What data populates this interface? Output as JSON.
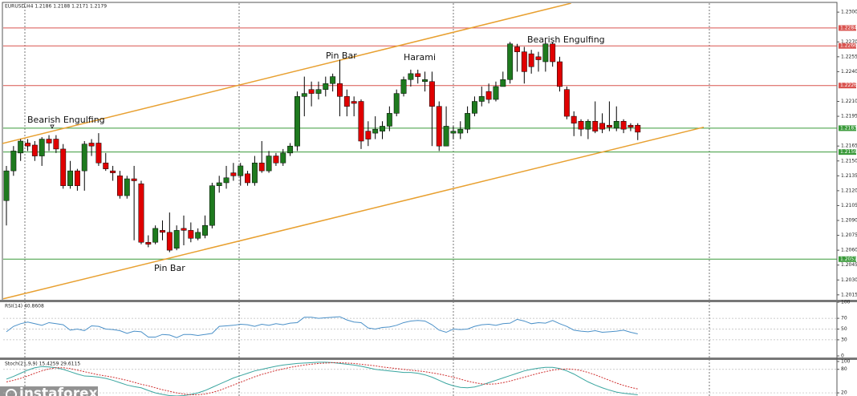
{
  "chart_data": [
    {
      "type": "candlestick",
      "title": "EURUSD,H4  1.2186 1.2188 1.2171 1.2179",
      "ylim": [
        1.201,
        1.2309
      ],
      "yticks": [
        {
          "value": 1.23,
          "label": "1.2300"
        },
        {
          "value": 1.227,
          "label": "1.2270"
        },
        {
          "value": 1.2255,
          "label": "1.2255"
        },
        {
          "value": 1.224,
          "label": "1.2240"
        },
        {
          "value": 1.221,
          "label": "1.2210"
        },
        {
          "value": 1.2195,
          "label": "1.2195"
        },
        {
          "value": 1.2165,
          "label": "1.2165"
        },
        {
          "value": 1.215,
          "label": "1.2150"
        },
        {
          "value": 1.2135,
          "label": "1.2135"
        },
        {
          "value": 1.212,
          "label": "1.2120"
        },
        {
          "value": 1.2105,
          "label": "1.2105"
        },
        {
          "value": 1.209,
          "label": "1.2090"
        },
        {
          "value": 1.2075,
          "label": "1.2075"
        },
        {
          "value": 1.206,
          "label": "1.2060"
        },
        {
          "value": 1.2045,
          "label": "1.2045"
        },
        {
          "value": 1.203,
          "label": "1.2030"
        },
        {
          "value": 1.2015,
          "label": "1.2015"
        }
      ],
      "up_color": "#1e7a1e",
      "down_color": "#e00000",
      "open": [
        1.211,
        1.214,
        1.2158,
        1.2168,
        1.2166,
        1.2155,
        1.2172,
        1.2172,
        1.2162,
        1.2125,
        1.214,
        1.214,
        1.2168,
        1.2168,
        1.2148,
        1.214,
        1.2135,
        1.2115,
        1.2132,
        1.2127,
        1.2068,
        1.2068,
        1.208,
        1.2078,
        1.2062,
        1.2082,
        1.208,
        1.2072,
        1.2075,
        1.2085,
        1.2125,
        1.2128,
        1.2138,
        1.2135,
        1.2137,
        1.2128,
        1.2148,
        1.214,
        1.2155,
        1.2148,
        1.2158,
        1.2165,
        1.2215,
        1.2222,
        1.2218,
        1.2222,
        1.2228,
        1.2228,
        1.2215,
        1.221,
        1.221,
        1.218,
        1.2178,
        1.218,
        1.2185,
        1.2198,
        1.2218,
        1.2232,
        1.2238,
        1.223,
        1.223,
        1.2205,
        1.2165,
        1.2178,
        1.2178,
        1.2182,
        1.2198,
        1.221,
        1.222,
        1.2212,
        1.2225,
        1.2232,
        1.2265,
        1.226,
        1.2258,
        1.2255,
        1.225,
        1.2268,
        1.225,
        1.2222,
        1.2195,
        1.219,
        1.2182,
        1.219,
        1.2188,
        1.2186,
        1.2183,
        1.219,
        1.2186,
        1.2186
      ],
      "high": [
        1.2145,
        1.2165,
        1.2172,
        1.2172,
        1.217,
        1.2174,
        1.2176,
        1.2176,
        1.2167,
        1.215,
        1.2142,
        1.217,
        1.2172,
        1.2178,
        1.2158,
        1.2145,
        1.214,
        1.2135,
        1.2145,
        1.213,
        1.2075,
        1.2085,
        1.209,
        1.2098,
        1.2085,
        1.2095,
        1.2088,
        1.2082,
        1.2095,
        1.2128,
        1.2135,
        1.2145,
        1.2148,
        1.2148,
        1.214,
        1.2155,
        1.217,
        1.216,
        1.2158,
        1.2162,
        1.2168,
        1.222,
        1.2235,
        1.223,
        1.223,
        1.2235,
        1.2238,
        1.2252,
        1.2222,
        1.2215,
        1.2212,
        1.219,
        1.2195,
        1.219,
        1.2205,
        1.2222,
        1.2235,
        1.2242,
        1.2242,
        1.224,
        1.224,
        1.221,
        1.2205,
        1.2185,
        1.219,
        1.2205,
        1.2215,
        1.2225,
        1.2228,
        1.223,
        1.224,
        1.227,
        1.2268,
        1.2265,
        1.2262,
        1.226,
        1.227,
        1.227,
        1.2255,
        1.2225,
        1.22,
        1.2192,
        1.2192,
        1.221,
        1.2198,
        1.221,
        1.2205,
        1.2192,
        1.2188,
        1.2188
      ],
      "low": [
        1.2085,
        1.2135,
        1.215,
        1.216,
        1.215,
        1.2145,
        1.216,
        1.2158,
        1.2122,
        1.2122,
        1.212,
        1.212,
        1.2155,
        1.2145,
        1.214,
        1.213,
        1.2112,
        1.2112,
        1.207,
        1.2066,
        1.2063,
        1.2066,
        1.207,
        1.2058,
        1.206,
        1.2065,
        1.2068,
        1.207,
        1.2072,
        1.2082,
        1.2118,
        1.2122,
        1.213,
        1.2125,
        1.2125,
        1.2125,
        1.2138,
        1.2138,
        1.2145,
        1.2145,
        1.2155,
        1.216,
        1.2195,
        1.2205,
        1.2212,
        1.2215,
        1.222,
        1.2195,
        1.2195,
        1.2195,
        1.2162,
        1.2165,
        1.2172,
        1.2172,
        1.218,
        1.2195,
        1.2215,
        1.2225,
        1.2228,
        1.222,
        1.2165,
        1.216,
        1.2165,
        1.2172,
        1.2172,
        1.2178,
        1.2195,
        1.2205,
        1.2208,
        1.221,
        1.2225,
        1.2228,
        1.224,
        1.2228,
        1.2238,
        1.224,
        1.224,
        1.2245,
        1.222,
        1.2192,
        1.2175,
        1.2175,
        1.2172,
        1.2178,
        1.2178,
        1.218,
        1.218,
        1.2178,
        1.218,
        1.2171
      ],
      "close": [
        1.214,
        1.216,
        1.217,
        1.2165,
        1.2155,
        1.2172,
        1.2168,
        1.2162,
        1.2125,
        1.214,
        1.2125,
        1.2167,
        1.2165,
        1.2148,
        1.2142,
        1.2138,
        1.2115,
        1.2132,
        1.213,
        1.2068,
        1.2066,
        1.2082,
        1.2078,
        1.206,
        1.208,
        1.208,
        1.2072,
        1.2078,
        1.2085,
        1.2125,
        1.2128,
        1.2133,
        1.2135,
        1.2145,
        1.2128,
        1.2148,
        1.214,
        1.2155,
        1.2148,
        1.2158,
        1.2165,
        1.2215,
        1.2218,
        1.2218,
        1.2222,
        1.2228,
        1.2235,
        1.2215,
        1.2205,
        1.2208,
        1.217,
        1.2172,
        1.2182,
        1.2185,
        1.2198,
        1.2218,
        1.2232,
        1.2238,
        1.2235,
        1.2232,
        1.2205,
        1.2165,
        1.2185,
        1.218,
        1.2182,
        1.2198,
        1.221,
        1.2215,
        1.2212,
        1.2225,
        1.2232,
        1.2268,
        1.226,
        1.224,
        1.2245,
        1.2252,
        1.2268,
        1.225,
        1.2225,
        1.2195,
        1.2188,
        1.2182,
        1.219,
        1.218,
        1.2182,
        1.2184,
        1.219,
        1.2182,
        1.2184,
        1.2179
      ],
      "levels": [
        {
          "value": 1.2284,
          "color": "#d9534f"
        },
        {
          "value": 1.2266,
          "color": "#d9534f"
        },
        {
          "value": 1.2226,
          "color": "#d9534f"
        },
        {
          "value": 1.2183,
          "color": "#3a9a3a"
        },
        {
          "value": 1.2159,
          "color": "#3a9a3a"
        },
        {
          "value": 1.2051,
          "color": "#3a9a3a"
        }
      ],
      "trendlines": [
        {
          "x": [
            -0.9,
            79.6
          ],
          "y": [
            1.2167,
            1.2309
          ],
          "color": "#e8a030"
        },
        {
          "x": [
            -0.45,
            98.3
          ],
          "y": [
            1.2011,
            1.2184
          ],
          "color": "#e8a030"
        }
      ],
      "annotations": [
        "Bearish Engulfing",
        "Pin Bar",
        "Harami",
        "Bearish Engulfing",
        "Pin Bar"
      ],
      "watermark": "instaforex"
    },
    {
      "type": "line",
      "title": "RSI(14) 40.8608",
      "ylim": [
        0,
        100
      ],
      "yticks": [
        100,
        70,
        50,
        30,
        0
      ],
      "series": [
        {
          "color": "#4a90c8",
          "style": "solid",
          "values": [
            45,
            55,
            60,
            63,
            60,
            57,
            62,
            60,
            58,
            48,
            50,
            47,
            56,
            55,
            50,
            49,
            47,
            42,
            46,
            45,
            35,
            35,
            40,
            39,
            34,
            40,
            40,
            38,
            40,
            42,
            55,
            56,
            57,
            59,
            58,
            55,
            59,
            57,
            60,
            58,
            61,
            62,
            72,
            72,
            70,
            71,
            72,
            73,
            67,
            63,
            62,
            52,
            50,
            53,
            54,
            57,
            62,
            65,
            66,
            65,
            58,
            48,
            44,
            50,
            49,
            50,
            55,
            58,
            59,
            57,
            60,
            61,
            68,
            65,
            60,
            62,
            61,
            66,
            60,
            55,
            48,
            46,
            45,
            47,
            44,
            45,
            46,
            48,
            44,
            41
          ]
        }
      ]
    },
    {
      "type": "line",
      "title": "Stoch(21,9,9) 15.4259 29.6115",
      "ylim": [
        12,
        104
      ],
      "yticks": [
        100,
        80,
        20
      ],
      "series": [
        {
          "color": "#3aa6a0",
          "style": "solid",
          "values": [
            55,
            62,
            70,
            78,
            84,
            87,
            86,
            84,
            80,
            74,
            68,
            63,
            62,
            60,
            57,
            52,
            46,
            40,
            36,
            33,
            26,
            20,
            16,
            13,
            12,
            13,
            16,
            20,
            26,
            34,
            42,
            50,
            58,
            64,
            70,
            76,
            80,
            84,
            88,
            91,
            93,
            95,
            96,
            97,
            98,
            98,
            97,
            95,
            93,
            91,
            88,
            84,
            80,
            78,
            76,
            74,
            72,
            72,
            70,
            66,
            60,
            52,
            44,
            38,
            34,
            33,
            35,
            40,
            46,
            52,
            58,
            64,
            70,
            76,
            80,
            83,
            85,
            85,
            82,
            76,
            68,
            58,
            48,
            40,
            33,
            27,
            22,
            19,
            17,
            15
          ]
        },
        {
          "color": "#d03030",
          "style": "dashed",
          "values": [
            48,
            52,
            57,
            63,
            70,
            76,
            81,
            84,
            84,
            82,
            78,
            74,
            70,
            66,
            63,
            60,
            56,
            52,
            47,
            42,
            38,
            33,
            28,
            24,
            20,
            17,
            15,
            15,
            17,
            21,
            26,
            33,
            40,
            47,
            54,
            61,
            67,
            72,
            77,
            81,
            85,
            88,
            91,
            93,
            95,
            96,
            97,
            97,
            96,
            95,
            93,
            91,
            89,
            86,
            84,
            82,
            80,
            78,
            76,
            74,
            71,
            68,
            64,
            60,
            55,
            50,
            46,
            43,
            42,
            43,
            46,
            50,
            55,
            60,
            65,
            70,
            74,
            78,
            80,
            81,
            80,
            77,
            72,
            66,
            59,
            52,
            45,
            39,
            34,
            30
          ]
        }
      ]
    }
  ]
}
